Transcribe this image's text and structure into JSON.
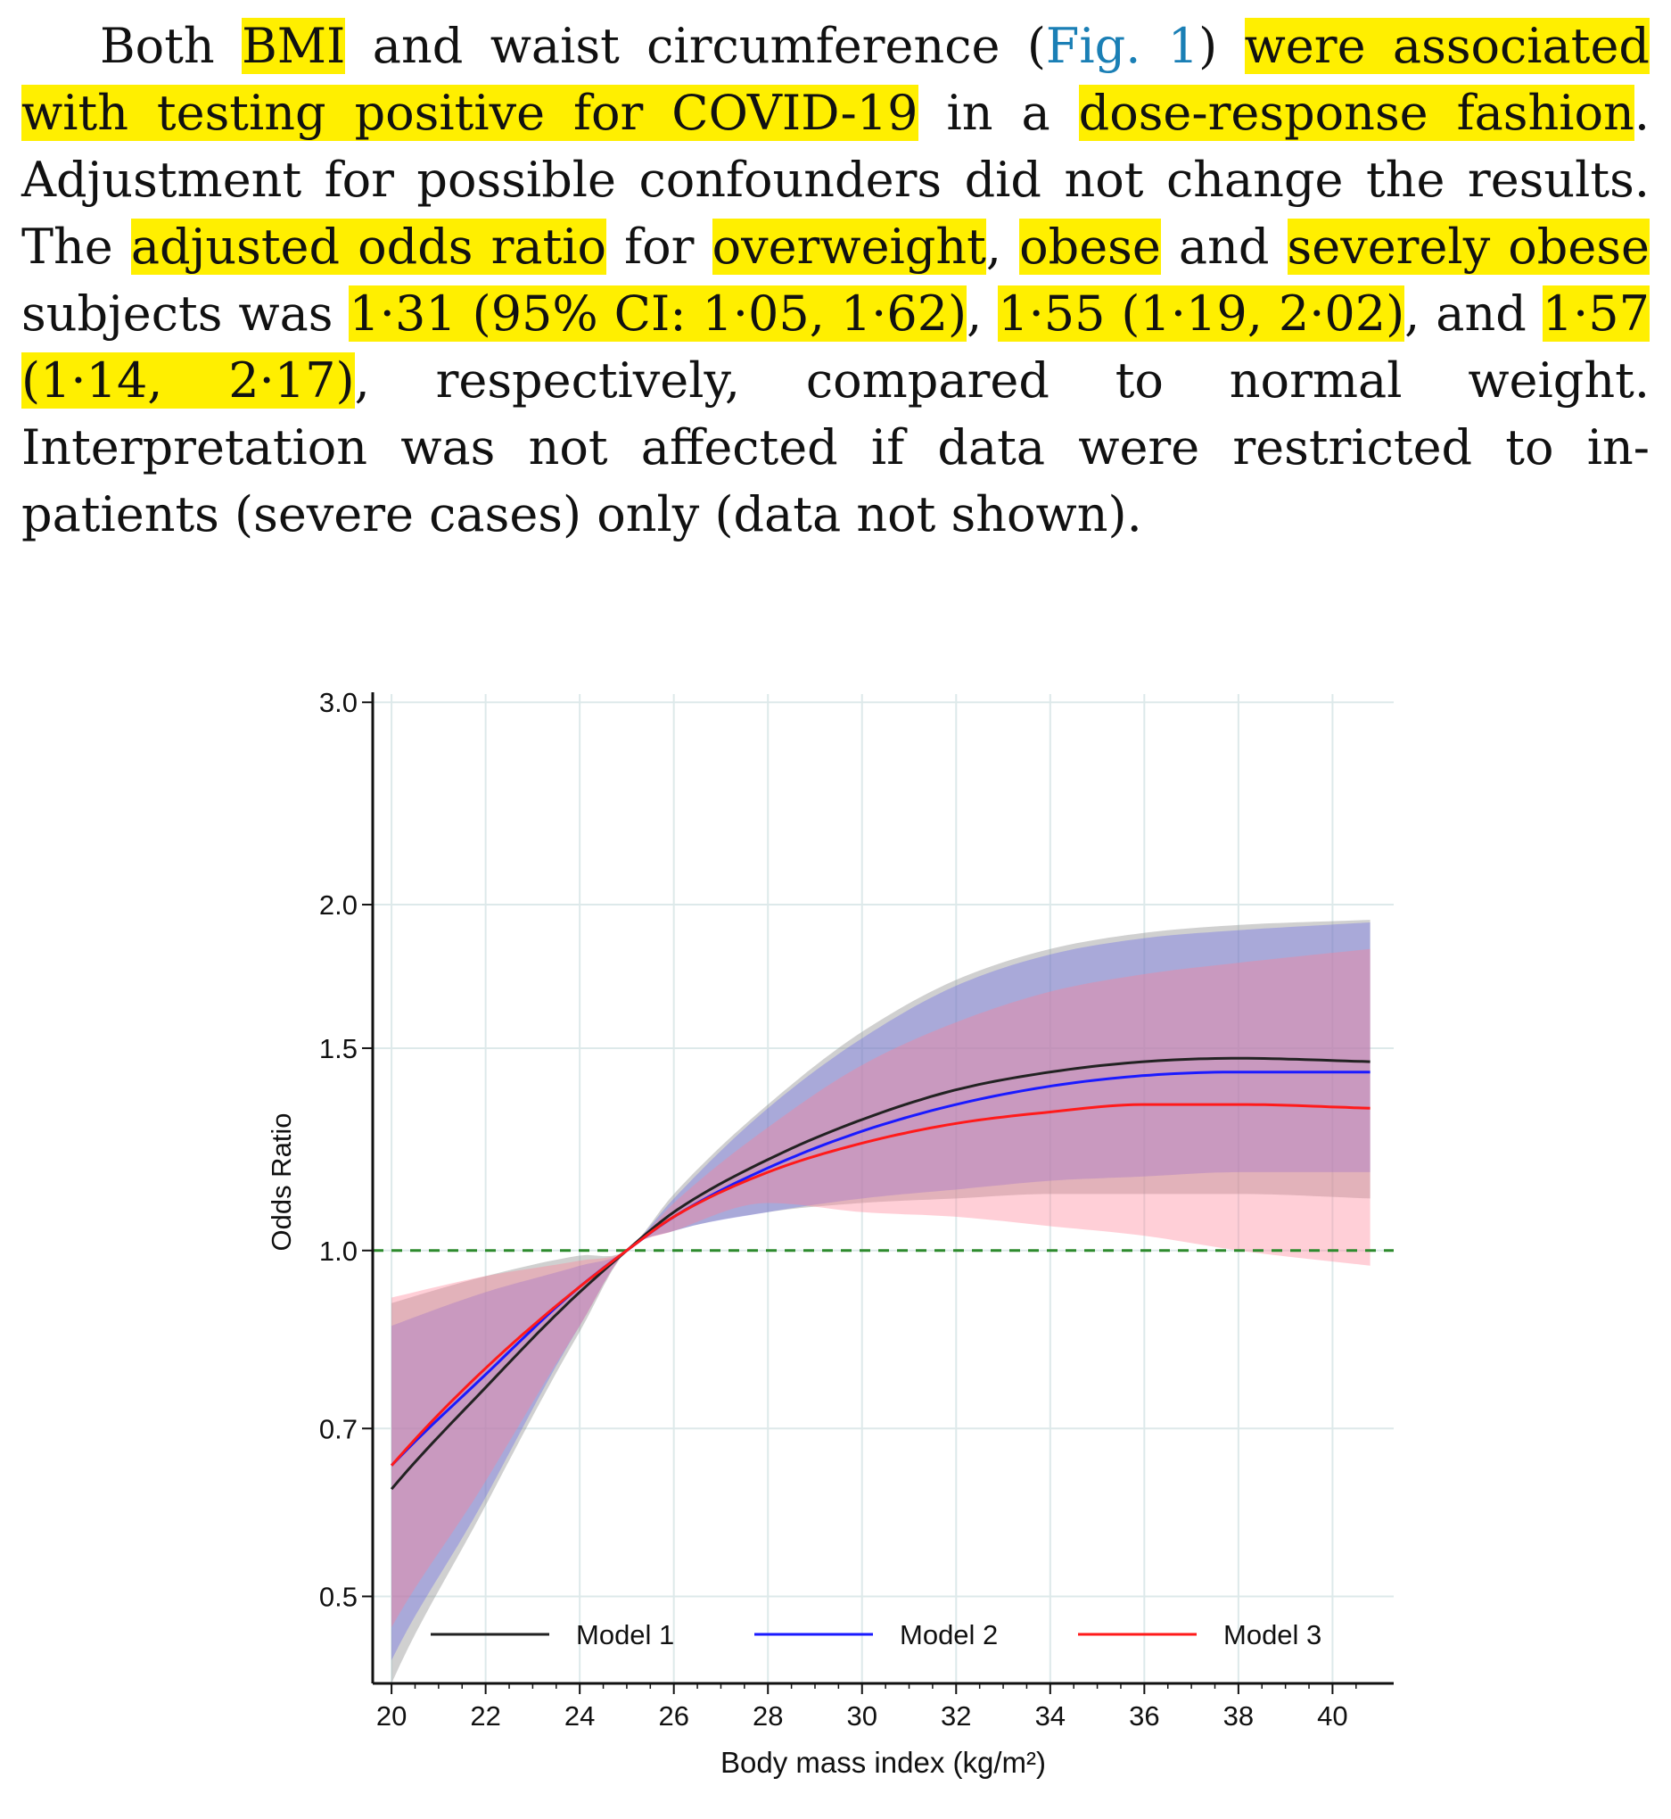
{
  "paragraph": {
    "segments": [
      {
        "text": "Both ",
        "hl": false
      },
      {
        "text": "BMI",
        "hl": true
      },
      {
        "text": " and waist circumference (",
        "hl": false
      },
      {
        "text": "Fig. 1",
        "hl": false,
        "link": true
      },
      {
        "text": ") ",
        "hl": false
      },
      {
        "text": "were associated with testing positive for COVID-19",
        "hl": true
      },
      {
        "text": " in a ",
        "hl": false
      },
      {
        "text": "dose-response fashion",
        "hl": true
      },
      {
        "text": ". Adjust­ment for possible confounders did not change the results. The ",
        "hl": false
      },
      {
        "text": "adjusted odds ratio",
        "hl": true
      },
      {
        "text": " for ",
        "hl": false
      },
      {
        "text": "overweight",
        "hl": true
      },
      {
        "text": ", ",
        "hl": false
      },
      {
        "text": "obese",
        "hl": true
      },
      {
        "text": " and ",
        "hl": false
      },
      {
        "text": "severely obese",
        "hl": true
      },
      {
        "text": " sub­jects was ",
        "hl": false
      },
      {
        "text": "1·31 (95% CI: 1·05, 1·62)",
        "hl": true
      },
      {
        "text": ", ",
        "hl": false
      },
      {
        "text": "1·55 (1·19, 2·02)",
        "hl": true
      },
      {
        "text": ", and ",
        "hl": false
      },
      {
        "text": "1·57 (1·14, 2·17)",
        "hl": true
      },
      {
        "text": ", respectively, compared to normal weight. Interpretation was not affected if data were restricted to in-patients (severe cases) only (data not shown).",
        "hl": false
      }
    ]
  },
  "colors": {
    "highlight": "#ffef00",
    "link": "#1a7fb5",
    "model1": "#222222",
    "model2": "#1a1aff",
    "model3": "#ff1a1a",
    "reference": "#2e8b2e"
  },
  "chart_data": {
    "type": "line",
    "xlabel": "Body mass index (kg/m²)",
    "ylabel": "Odds Ratio",
    "x_ticks": [
      20,
      22,
      24,
      26,
      28,
      30,
      32,
      34,
      36,
      38,
      40
    ],
    "y_ticks": [
      0.5,
      0.7,
      1.0,
      1.5,
      2.0,
      3.0
    ],
    "y_tick_labels": [
      "0.5",
      "0.7",
      "1.0",
      "1.5",
      "2.0",
      "3.0"
    ],
    "xlim": [
      19.6,
      41.3
    ],
    "ylim": [
      0.42,
      3.05
    ],
    "y_scale": "log",
    "grid": true,
    "legend_position": "bottom-inside",
    "reference_line": {
      "y": 1.0,
      "style": "dashed"
    },
    "x": [
      20,
      22,
      24,
      25,
      26,
      28,
      30,
      32,
      34,
      36,
      38,
      40.8
    ],
    "series": [
      {
        "name": "Model 1",
        "color": "#222222",
        "values": [
          0.62,
          0.76,
          0.92,
          1.0,
          1.08,
          1.2,
          1.3,
          1.38,
          1.43,
          1.46,
          1.47,
          1.46
        ],
        "lower": [
          0.42,
          0.6,
          0.85,
          1.0,
          1.04,
          1.08,
          1.1,
          1.11,
          1.12,
          1.12,
          1.12,
          1.11
        ],
        "upper": [
          0.9,
          0.95,
          0.99,
          1.0,
          1.12,
          1.34,
          1.55,
          1.72,
          1.83,
          1.89,
          1.92,
          1.94
        ]
      },
      {
        "name": "Model 2",
        "color": "#1a1aff",
        "values": [
          0.65,
          0.78,
          0.93,
          1.0,
          1.07,
          1.18,
          1.27,
          1.34,
          1.39,
          1.42,
          1.43,
          1.43
        ],
        "lower": [
          0.44,
          0.61,
          0.86,
          1.0,
          1.04,
          1.08,
          1.11,
          1.13,
          1.15,
          1.16,
          1.17,
          1.17
        ],
        "upper": [
          0.86,
          0.92,
          0.97,
          1.0,
          1.11,
          1.33,
          1.53,
          1.7,
          1.81,
          1.87,
          1.9,
          1.93
        ]
      },
      {
        "name": "Model 3",
        "color": "#ff1a1a",
        "values": [
          0.65,
          0.79,
          0.93,
          1.0,
          1.07,
          1.17,
          1.24,
          1.29,
          1.32,
          1.34,
          1.34,
          1.33
        ],
        "lower": [
          0.47,
          0.63,
          0.86,
          1.0,
          1.04,
          1.1,
          1.08,
          1.07,
          1.05,
          1.03,
          1.0,
          0.97
        ],
        "upper": [
          0.91,
          0.95,
          0.98,
          1.0,
          1.1,
          1.28,
          1.45,
          1.58,
          1.68,
          1.74,
          1.78,
          1.83
        ]
      }
    ]
  }
}
